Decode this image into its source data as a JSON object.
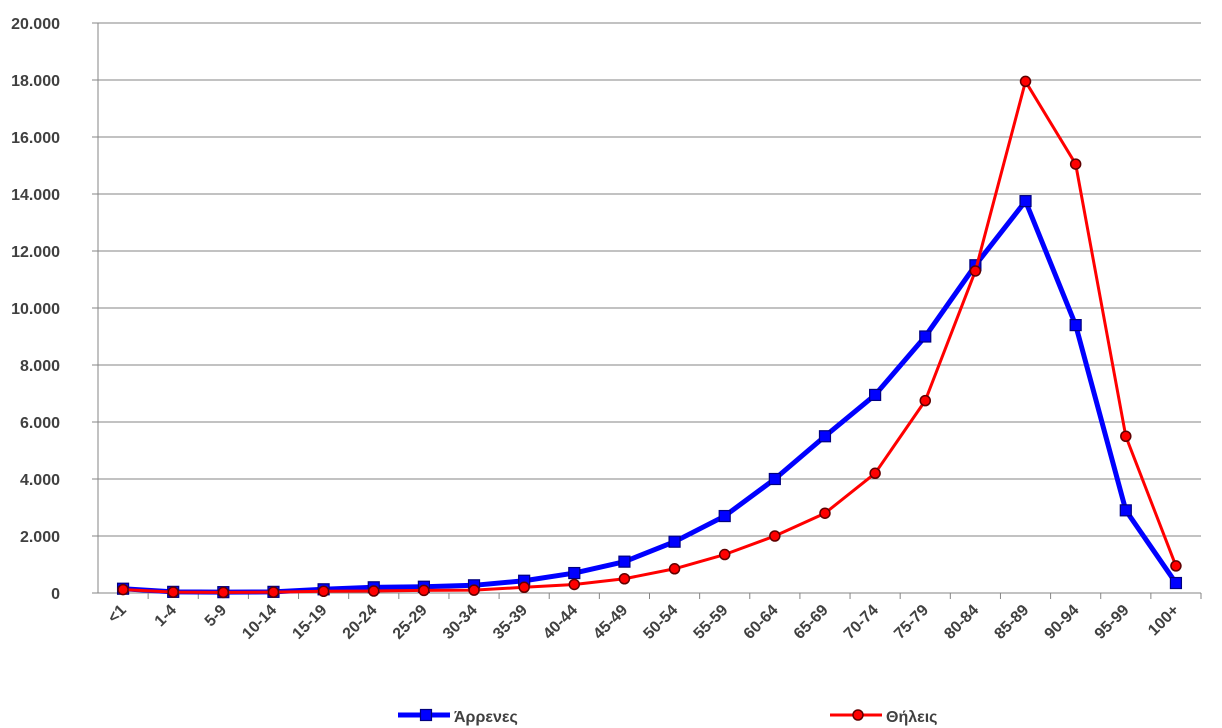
{
  "chart_data": {
    "type": "line",
    "categories": [
      "<1",
      "1-4",
      "5-9",
      "10-14",
      "15-19",
      "20-24",
      "25-29",
      "30-34",
      "35-39",
      "40-44",
      "45-49",
      "50-54",
      "55-59",
      "60-64",
      "65-69",
      "70-74",
      "75-79",
      "80-84",
      "85-89",
      "90-94",
      "95-99",
      "100+"
    ],
    "series": [
      {
        "name": "Άρρενες",
        "color": "#0000ff",
        "values": [
          150,
          40,
          30,
          40,
          130,
          200,
          220,
          270,
          430,
          700,
          1100,
          1800,
          2700,
          4000,
          5500,
          6950,
          9000,
          11500,
          13750,
          9400,
          2900,
          350
        ]
      },
      {
        "name": "Θήλεις",
        "color": "#ff0000",
        "values": [
          120,
          30,
          20,
          30,
          60,
          70,
          90,
          100,
          200,
          300,
          500,
          850,
          1350,
          2000,
          2800,
          4200,
          6750,
          11300,
          17950,
          15050,
          5500,
          950
        ]
      }
    ],
    "ylim": [
      0,
      20000
    ],
    "yticks": [
      0,
      {
        "value": 2000,
        "label": "2.000"
      },
      {
        "value": 4000,
        "label": "4.000"
      },
      {
        "value": 6000,
        "label": "6.000"
      },
      {
        "value": 8000,
        "label": "8.000"
      },
      {
        "value": 10000,
        "label": "10.000"
      },
      {
        "value": 12000,
        "label": "12.000"
      },
      {
        "value": 14000,
        "label": "14.000"
      },
      {
        "value": 16000,
        "label": "16.000"
      },
      {
        "value": 18000,
        "label": "18.000"
      },
      {
        "value": 20000,
        "label": "20.000"
      }
    ],
    "grid": true,
    "legend": "bottom"
  }
}
